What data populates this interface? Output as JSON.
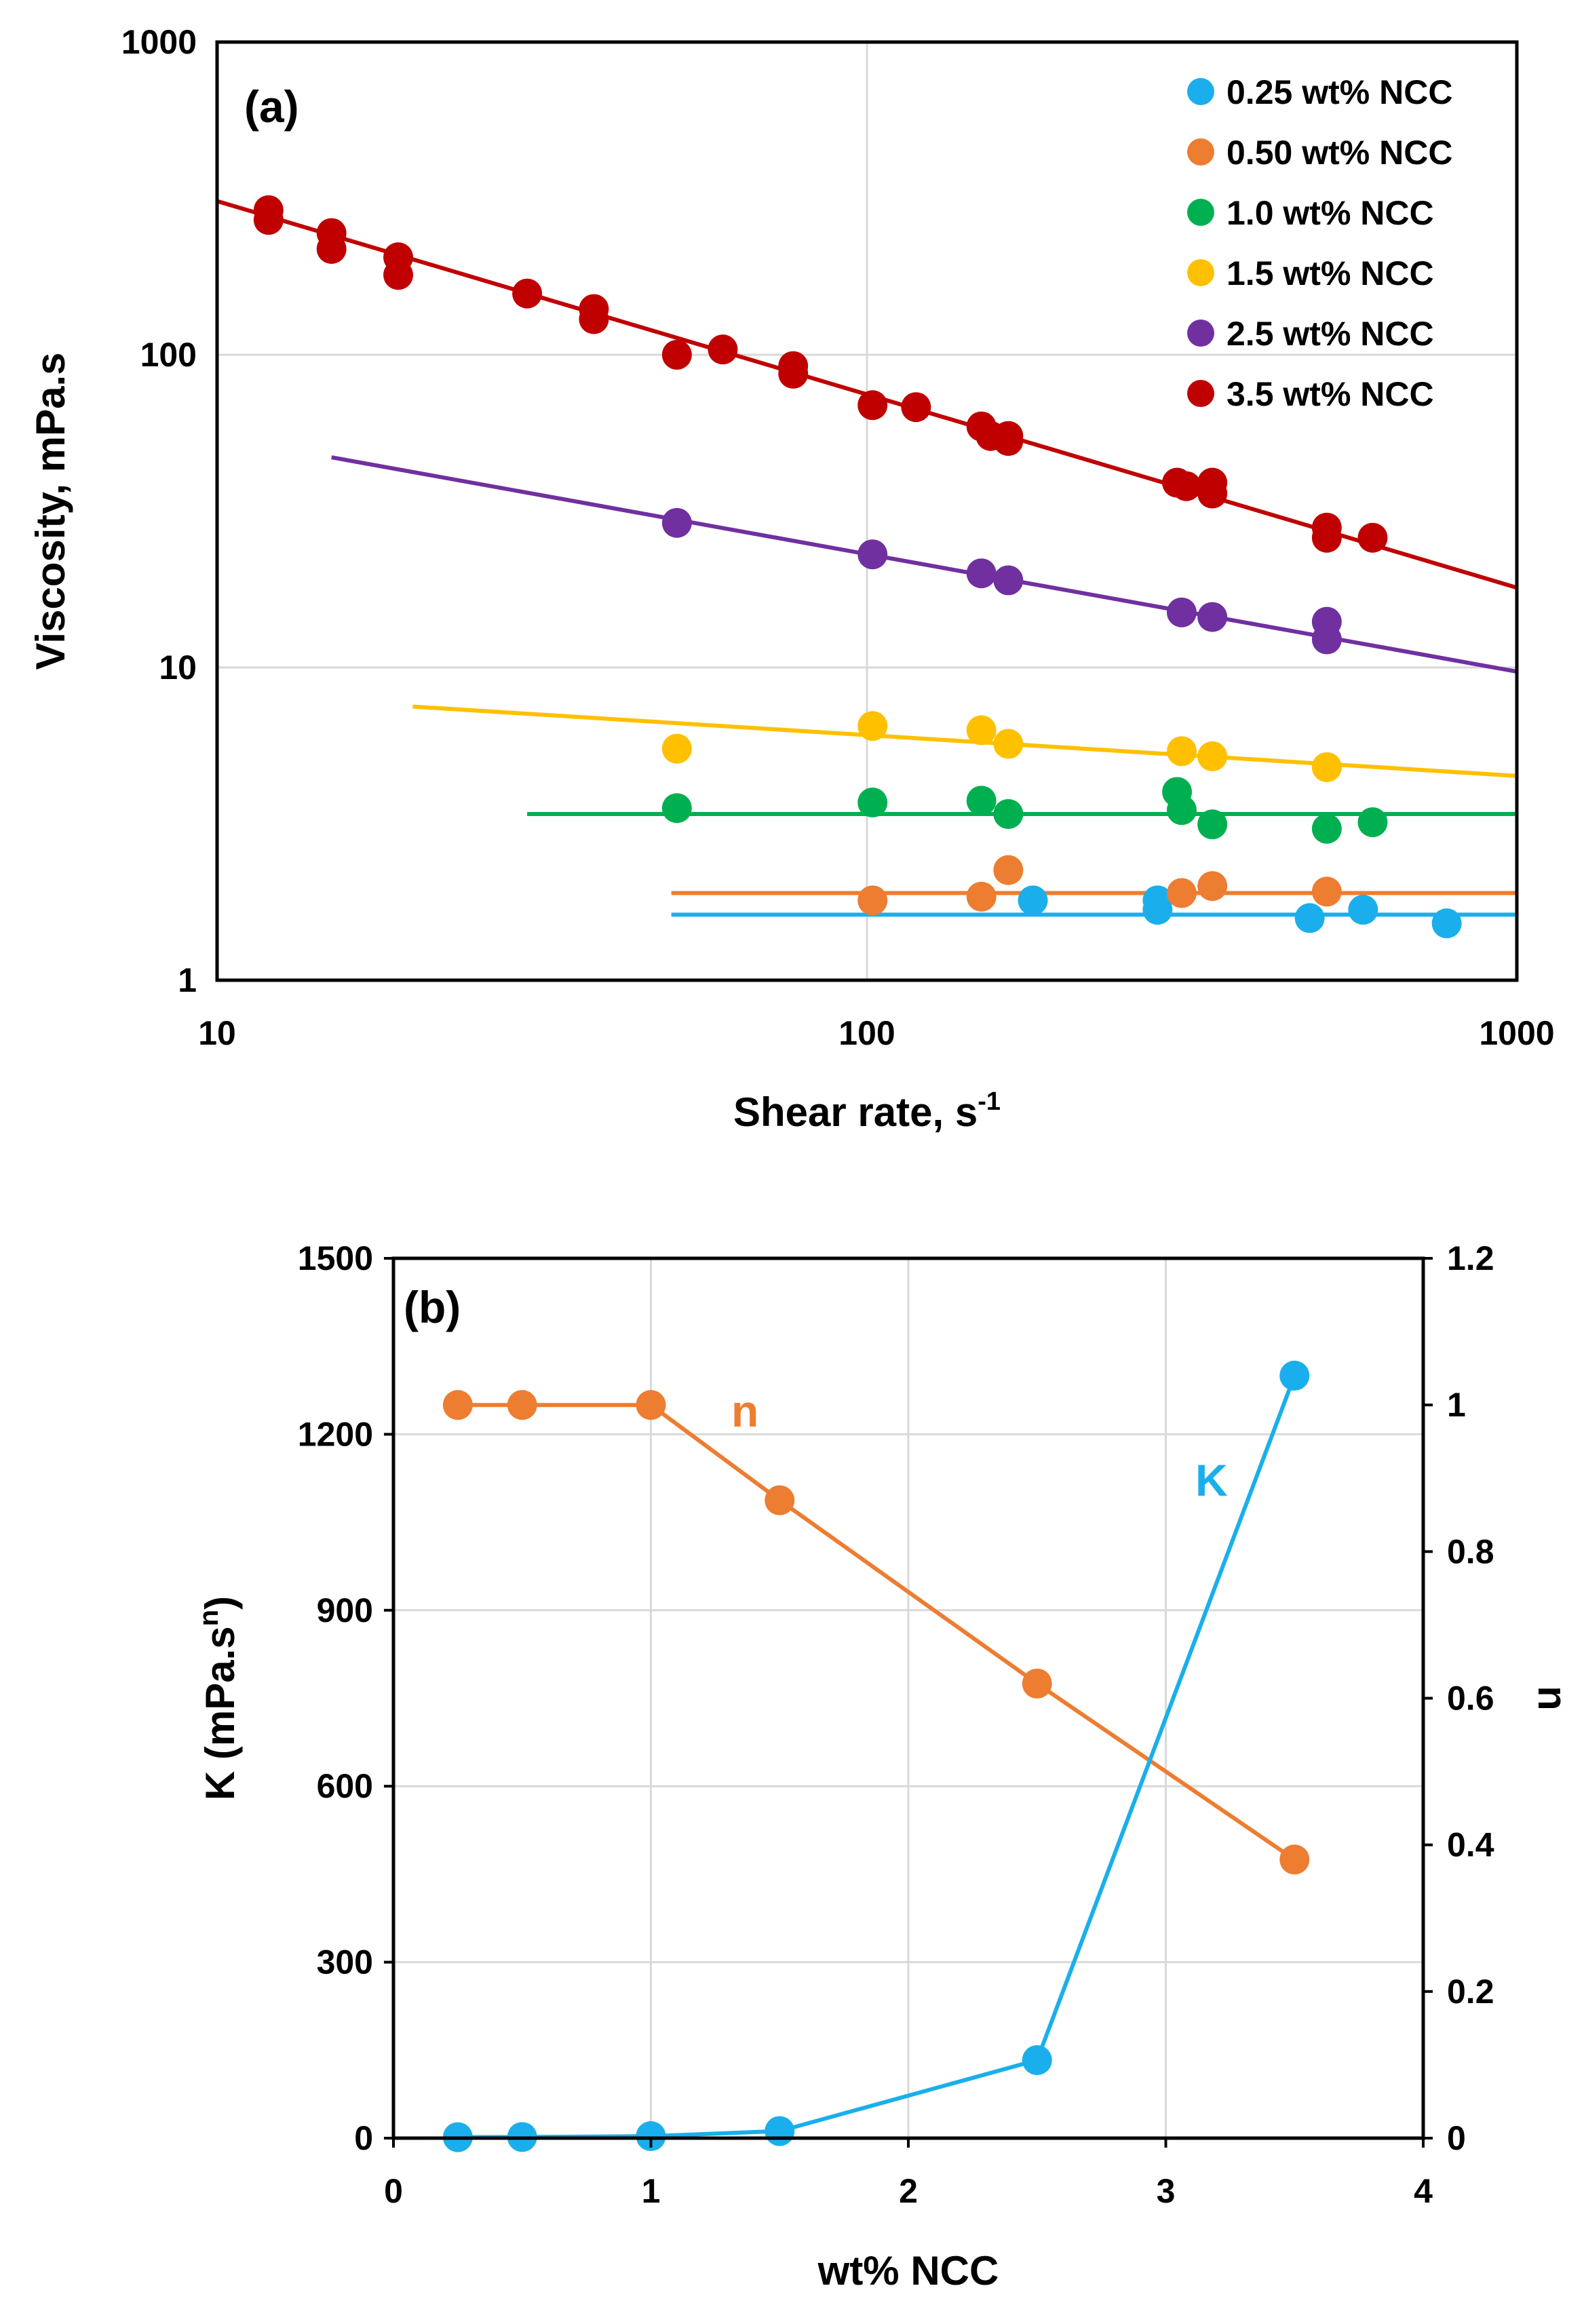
{
  "chart_data": [
    {
      "type": "scatter",
      "panel_label": "(a)",
      "xlabel": "Shear rate, s",
      "xlabel_sup": "-1",
      "ylabel": "Viscosity, mPa.s",
      "xscale": "log",
      "yscale": "log",
      "xlim": [
        10,
        1000
      ],
      "ylim": [
        1,
        1000
      ],
      "x_ticks": [
        "10",
        "100",
        "1000"
      ],
      "y_ticks": [
        "1",
        "10",
        "100",
        "1000"
      ],
      "grid": true,
      "legend_position": "top-right",
      "series": [
        {
          "name": "0.25 wt% NCC",
          "color": "#1aafec",
          "points": [
            [
              180,
              1.8
            ],
            [
              280,
              1.8
            ],
            [
              280,
              1.68
            ],
            [
              480,
              1.58
            ],
            [
              580,
              1.68
            ],
            [
              780,
              1.52
            ]
          ],
          "fit_line": {
            "x": [
              50,
              1000
            ],
            "y": [
              1.62,
              1.62
            ]
          }
        },
        {
          "name": "0.50 wt% NCC",
          "color": "#ed7d31",
          "points": [
            [
              102,
              1.8
            ],
            [
              150,
              1.85
            ],
            [
              165,
              2.25
            ],
            [
              305,
              1.9
            ],
            [
              340,
              2.0
            ],
            [
              510,
              1.92
            ]
          ],
          "fit_line": {
            "x": [
              50,
              1000
            ],
            "y": [
              1.9,
              1.9
            ]
          }
        },
        {
          "name": "1.0 wt% NCC",
          "color": "#00b050",
          "points": [
            [
              51,
              3.55
            ],
            [
              102,
              3.7
            ],
            [
              150,
              3.75
            ],
            [
              165,
              3.4
            ],
            [
              300,
              4.0
            ],
            [
              305,
              3.5
            ],
            [
              340,
              3.15
            ],
            [
              510,
              3.05
            ],
            [
              600,
              3.2
            ]
          ],
          "fit_line": {
            "x": [
              30,
              1000
            ],
            "y": [
              3.4,
              3.4
            ]
          }
        },
        {
          "name": "1.5 wt% NCC",
          "color": "#ffc000",
          "points": [
            [
              51,
              5.5
            ],
            [
              102,
              6.5
            ],
            [
              150,
              6.3
            ],
            [
              165,
              5.7
            ],
            [
              305,
              5.4
            ],
            [
              340,
              5.2
            ],
            [
              510,
              4.8
            ]
          ],
          "fit_line": {
            "x": [
              20,
              1000
            ],
            "y": [
              7.5,
              4.5
            ]
          }
        },
        {
          "name": "2.5 wt% NCC",
          "color": "#7030a0",
          "points": [
            [
              51,
              29
            ],
            [
              102,
              23
            ],
            [
              150,
              20
            ],
            [
              165,
              19
            ],
            [
              305,
              15
            ],
            [
              340,
              14.5
            ],
            [
              510,
              14
            ],
            [
              510,
              12.3
            ]
          ],
          "fit_line": {
            "x": [
              15,
              1000
            ],
            "y": [
              47,
              9.7
            ]
          }
        },
        {
          "name": "3.5 wt% NCC",
          "color": "#c00000",
          "points": [
            [
              12,
              290
            ],
            [
              12,
              270
            ],
            [
              15,
              245
            ],
            [
              15,
              218
            ],
            [
              19,
              205
            ],
            [
              19,
              180
            ],
            [
              30,
              157
            ],
            [
              38,
              140
            ],
            [
              38,
              130
            ],
            [
              51,
              100
            ],
            [
              60,
              104
            ],
            [
              77,
              92
            ],
            [
              77,
              87
            ],
            [
              102,
              69
            ],
            [
              119,
              68
            ],
            [
              150,
              59
            ],
            [
              155,
              55
            ],
            [
              165,
              55
            ],
            [
              165,
              53
            ],
            [
              300,
              39
            ],
            [
              310,
              38
            ],
            [
              340,
              39
            ],
            [
              340,
              36
            ],
            [
              510,
              28
            ],
            [
              510,
              26
            ],
            [
              600,
              26
            ]
          ],
          "fit_line": {
            "x": [
              10,
              1000
            ],
            "y": [
              310,
              18
            ]
          }
        }
      ]
    },
    {
      "type": "line",
      "panel_label": "(b)",
      "xlabel": "wt% NCC",
      "ylabel_left": "K (mPa.s",
      "ylabel_left_sup": "n",
      "ylabel_left_end": ")",
      "ylabel_right": "n",
      "xlim": [
        0,
        4
      ],
      "ylim_left": [
        0,
        1500
      ],
      "ylim_right": [
        0,
        1.2
      ],
      "x_ticks": [
        "0",
        "1",
        "2",
        "3",
        "4"
      ],
      "y_left_ticks": [
        "0",
        "300",
        "600",
        "900",
        "1200",
        "1500"
      ],
      "y_right_ticks": [
        "0",
        "0.2",
        "0.4",
        "0.6",
        "0.8",
        "1",
        "1.2"
      ],
      "grid": true,
      "series": [
        {
          "name": "n",
          "axis": "right",
          "color": "#ed7d31",
          "x": [
            0.25,
            0.5,
            1.0,
            1.5,
            2.5,
            3.5
          ],
          "y": [
            1.0,
            1.0,
            1.0,
            0.87,
            0.62,
            0.38
          ]
        },
        {
          "name": "K",
          "axis": "left",
          "color": "#1aafec",
          "x": [
            0.25,
            0.5,
            1.0,
            1.5,
            2.5,
            3.5
          ],
          "y": [
            1.6,
            1.9,
            3.4,
            12,
            133,
            1300
          ]
        }
      ]
    }
  ]
}
